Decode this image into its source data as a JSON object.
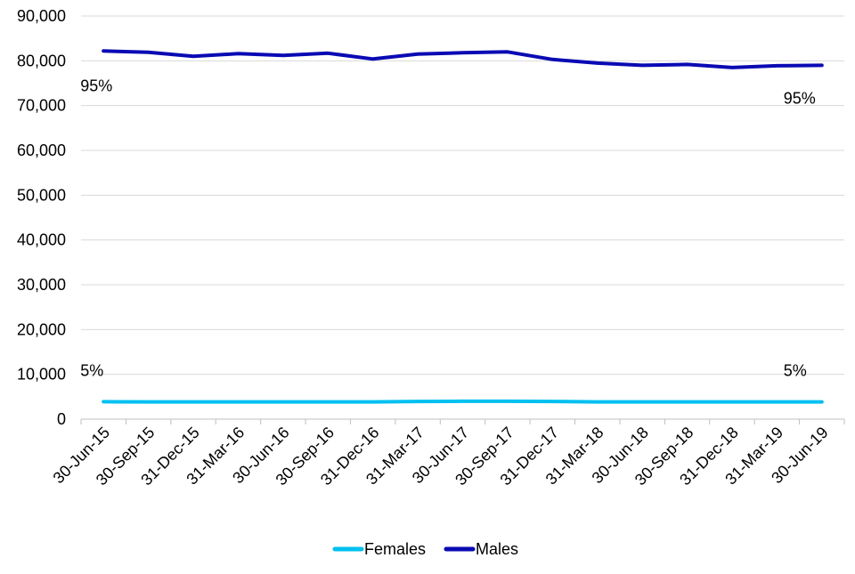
{
  "chart_data": {
    "type": "line",
    "title": "",
    "xlabel": "",
    "ylabel": "",
    "ylim": [
      0,
      90000
    ],
    "yticks": [
      0,
      10000,
      20000,
      30000,
      40000,
      50000,
      60000,
      70000,
      80000,
      90000
    ],
    "ytick_labels": [
      "0",
      "10,000",
      "20,000",
      "30,000",
      "40,000",
      "50,000",
      "60,000",
      "70,000",
      "80,000",
      "90,000"
    ],
    "grid": "horizontal",
    "legend_position": "bottom",
    "categories": [
      "30-Jun-15",
      "30-Sep-15",
      "31-Dec-15",
      "31-Mar-16",
      "30-Jun-16",
      "30-Sep-16",
      "31-Dec-16",
      "31-Mar-17",
      "30-Jun-17",
      "30-Sep-17",
      "31-Dec-17",
      "31-Mar-18",
      "30-Jun-18",
      "30-Sep-18",
      "31-Dec-18",
      "31-Mar-19",
      "30-Jun-19"
    ],
    "series": [
      {
        "name": "Females",
        "color": "#00c0f0",
        "values": [
          3900,
          3850,
          3850,
          3850,
          3850,
          3850,
          3850,
          3950,
          4000,
          4000,
          3950,
          3850,
          3850,
          3850,
          3850,
          3850,
          3850
        ]
      },
      {
        "name": "Males",
        "color": "#0a0ab4",
        "values": [
          82200,
          81900,
          81000,
          81600,
          81200,
          81700,
          80400,
          81500,
          81800,
          82000,
          80300,
          79500,
          79000,
          79200,
          78500,
          78900,
          79000
        ]
      }
    ],
    "annotations": [
      {
        "text": "95%",
        "series": "Males",
        "category": "30-Jun-15"
      },
      {
        "text": "95%",
        "series": "Males",
        "category": "30-Jun-19"
      },
      {
        "text": "5%",
        "series": "Females",
        "category": "30-Jun-15"
      },
      {
        "text": "5%",
        "series": "Females",
        "category": "30-Jun-19"
      }
    ]
  }
}
